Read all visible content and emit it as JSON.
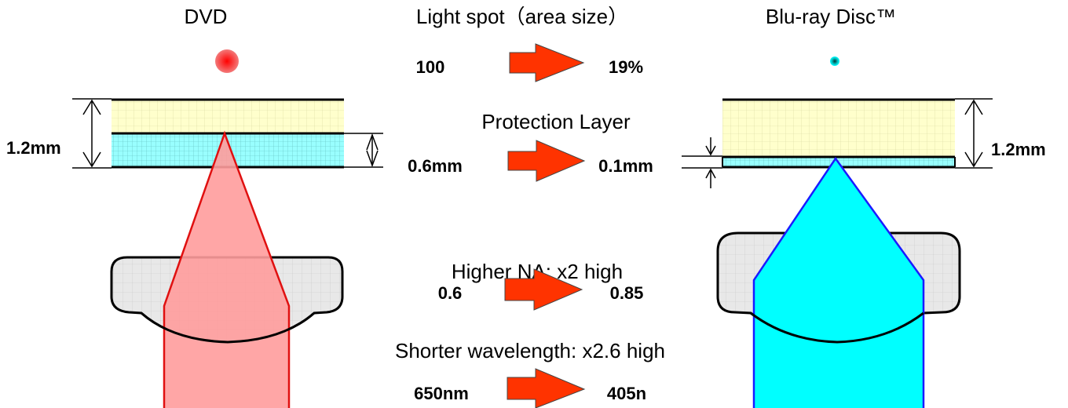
{
  "dvd": {
    "title": "DVD",
    "thickness": "1.2mm",
    "colors": {
      "spot": "#f03a3a",
      "beam_fill": "#ff9c9c",
      "beam_edge": "#e01010"
    }
  },
  "bluray": {
    "title": "Blu-ray Disc™",
    "thickness": "1.2mm",
    "colors": {
      "spot": "#00c8c8",
      "beam_fill": "#00ffff",
      "beam_edge": "#1a1aff"
    }
  },
  "comparisons": [
    {
      "key": "spot",
      "label": "Light spot（area size）",
      "from": "100",
      "to": "19%"
    },
    {
      "key": "layer",
      "label": "Protection Layer",
      "from": "0.6mm",
      "to": "0.1mm"
    },
    {
      "key": "na",
      "label": "Higher NA: x2 high",
      "from": "0.6",
      "to": "0.85"
    },
    {
      "key": "wavelength",
      "label": "Shorter wavelength: x2.6 high",
      "from": "650nm",
      "to": "405n"
    }
  ],
  "colors": {
    "arrow": "#ff3300",
    "disc_top": "#ffffcc",
    "disc_bottom": "#99ffff",
    "lens": "#e8e8e8"
  }
}
